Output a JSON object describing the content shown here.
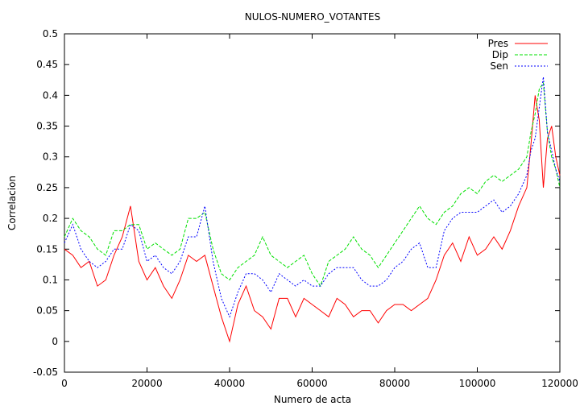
{
  "chart_data": {
    "type": "line",
    "title": "NULOS-NUMERO_VOTANTES",
    "xlabel": "Numero de acta",
    "ylabel": "Correlacion",
    "xlim": [
      0,
      120000
    ],
    "ylim": [
      -0.05,
      0.5
    ],
    "xticks": [
      "0",
      "20000",
      "40000",
      "60000",
      "80000",
      "100000",
      "120000"
    ],
    "yticks": [
      "-0.05",
      "0",
      "0.05",
      "0.1",
      "0.15",
      "0.2",
      "0.25",
      "0.3",
      "0.35",
      "0.4",
      "0.45",
      "0.5"
    ],
    "grid": false,
    "legend_position": "top-right",
    "x": [
      0,
      2000,
      4000,
      6000,
      8000,
      10000,
      12000,
      14000,
      16000,
      18000,
      20000,
      22000,
      24000,
      26000,
      28000,
      30000,
      32000,
      34000,
      36000,
      38000,
      40000,
      42000,
      44000,
      46000,
      48000,
      50000,
      52000,
      54000,
      56000,
      58000,
      60000,
      62000,
      64000,
      66000,
      68000,
      70000,
      72000,
      74000,
      76000,
      78000,
      80000,
      82000,
      84000,
      86000,
      88000,
      90000,
      92000,
      94000,
      96000,
      98000,
      100000,
      102000,
      104000,
      106000,
      108000,
      110000,
      112000,
      113000,
      114000,
      115000,
      116000,
      117000,
      118000,
      119000,
      120000
    ],
    "series": [
      {
        "name": "Pres",
        "color": "#ff0000",
        "dash": "solid",
        "values": [
          0.15,
          0.14,
          0.12,
          0.13,
          0.09,
          0.1,
          0.14,
          0.17,
          0.22,
          0.13,
          0.1,
          0.12,
          0.09,
          0.07,
          0.1,
          0.14,
          0.13,
          0.14,
          0.09,
          0.04,
          0.0,
          0.06,
          0.09,
          0.05,
          0.04,
          0.02,
          0.07,
          0.07,
          0.04,
          0.07,
          0.06,
          0.05,
          0.04,
          0.07,
          0.06,
          0.04,
          0.05,
          0.05,
          0.03,
          0.05,
          0.06,
          0.06,
          0.05,
          0.06,
          0.07,
          0.1,
          0.14,
          0.16,
          0.13,
          0.17,
          0.14,
          0.15,
          0.17,
          0.15,
          0.18,
          0.22,
          0.25,
          0.32,
          0.4,
          0.36,
          0.25,
          0.33,
          0.35,
          0.3,
          0.27
        ]
      },
      {
        "name": "Dip",
        "color": "#00e000",
        "dash": "long",
        "values": [
          0.17,
          0.2,
          0.18,
          0.17,
          0.15,
          0.14,
          0.18,
          0.18,
          0.19,
          0.19,
          0.15,
          0.16,
          0.15,
          0.14,
          0.15,
          0.2,
          0.2,
          0.21,
          0.15,
          0.11,
          0.1,
          0.12,
          0.13,
          0.14,
          0.17,
          0.14,
          0.13,
          0.12,
          0.13,
          0.14,
          0.11,
          0.09,
          0.13,
          0.14,
          0.15,
          0.17,
          0.15,
          0.14,
          0.12,
          0.14,
          0.16,
          0.18,
          0.2,
          0.22,
          0.2,
          0.19,
          0.21,
          0.22,
          0.24,
          0.25,
          0.24,
          0.26,
          0.27,
          0.26,
          0.27,
          0.28,
          0.3,
          0.34,
          0.37,
          0.41,
          0.42,
          0.34,
          0.3,
          0.28,
          0.25
        ]
      },
      {
        "name": "Sen",
        "color": "#0000ff",
        "dash": "short",
        "values": [
          0.16,
          0.19,
          0.15,
          0.13,
          0.12,
          0.13,
          0.15,
          0.15,
          0.19,
          0.18,
          0.13,
          0.14,
          0.12,
          0.11,
          0.13,
          0.17,
          0.17,
          0.22,
          0.13,
          0.07,
          0.04,
          0.08,
          0.11,
          0.11,
          0.1,
          0.08,
          0.11,
          0.1,
          0.09,
          0.1,
          0.09,
          0.09,
          0.11,
          0.12,
          0.12,
          0.12,
          0.1,
          0.09,
          0.09,
          0.1,
          0.12,
          0.13,
          0.15,
          0.16,
          0.12,
          0.12,
          0.18,
          0.2,
          0.21,
          0.21,
          0.21,
          0.22,
          0.23,
          0.21,
          0.22,
          0.24,
          0.27,
          0.31,
          0.33,
          0.38,
          0.43,
          0.34,
          0.31,
          0.28,
          0.26
        ]
      }
    ]
  }
}
